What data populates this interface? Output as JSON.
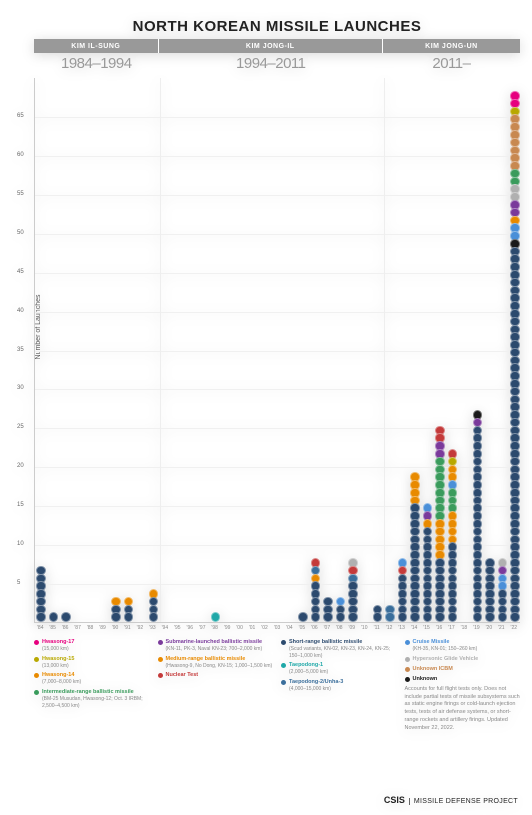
{
  "title": "NORTH KOREAN MISSILE LAUNCHES",
  "eras": [
    {
      "leader": "KIM IL-SUNG",
      "range": "1984–1994",
      "start_year": 1984,
      "end_year": 1993
    },
    {
      "leader": "KIM JONG-IL",
      "range": "1994–2011",
      "start_year": 1994,
      "end_year": 2011
    },
    {
      "leader": "KIM JONG-UN",
      "range": "2011–",
      "start_year": 2012,
      "end_year": 2022
    }
  ],
  "y_axis": {
    "label": "Number of Launches",
    "min": 0,
    "max": 70,
    "ticks": [
      5,
      10,
      15,
      20,
      25,
      30,
      35,
      40,
      45,
      50,
      55,
      60,
      65
    ]
  },
  "x_axis": {
    "start": 1984,
    "end": 2022
  },
  "dot_radius": 4.8,
  "colors": {
    "hw17": "#e6007e",
    "hw15": "#b8a800",
    "hw14": "#e88a00",
    "irbm": "#3a9b5c",
    "slbm": "#7a3a9b",
    "mrbm": "#e88a00",
    "nuclear": "#c43a3a",
    "srbm": "#2c4a6e",
    "taepo1": "#1fa8a8",
    "taepo2": "#3a6e9b",
    "cruise": "#4a8fd8",
    "hgv": "#b0b0b0",
    "icbm": "#c88850",
    "unknown": "#1a1a1a",
    "era_bg": "#999999",
    "years_text": "#999999"
  },
  "legend": [
    [
      {
        "key": "hw17",
        "name": "Hwasong-17",
        "sub": "(15,000 km)"
      },
      {
        "key": "hw15",
        "name": "Hwasong-15",
        "sub": "(13,000 km)"
      },
      {
        "key": "hw14",
        "name": "Hwasong-14",
        "sub": "(7,000–8,000 km)"
      },
      {
        "key": "irbm",
        "name": "Intermediate-range ballistic missile",
        "sub": "(BM-25 Musudan, Hwasong-12; Oct. 3 IRBM; 2,500–4,500 km)"
      }
    ],
    [
      {
        "key": "slbm",
        "name": "Submarine-launched ballistic missile",
        "sub": "(KN-11, PK-3, Naval KN-23; 700–2,000 km)"
      },
      {
        "key": "mrbm",
        "name": "Medium-range ballistic missile",
        "sub": "(Hwasong-9, No Dong, KN-15; 1,000–1,500 km)"
      },
      {
        "key": "nuclear",
        "name": "Nuclear Test",
        "sub": ""
      }
    ],
    [
      {
        "key": "srbm",
        "name": "Short-range ballistic missile",
        "sub": "(Scud variants, KN-02, KN-23, KN-24, KN-25; 150–1,000 km)"
      },
      {
        "key": "taepo1",
        "name": "Taepodong-1",
        "sub": "(2,000–5,000 km)"
      },
      {
        "key": "taepo2",
        "name": "Taepodong-2/Unha-3",
        "sub": "(4,000–15,000 km)"
      }
    ],
    [
      {
        "key": "cruise",
        "name": "Cruise Missile",
        "sub": "(KH-35, KN-01; 150–260 km)"
      },
      {
        "key": "hgv",
        "name": "Hypersonic Glide Vehicle",
        "sub": ""
      },
      {
        "key": "icbm",
        "name": "Unknown ICBM",
        "sub": ""
      },
      {
        "key": "unknown",
        "name": "Unknown",
        "sub": ""
      }
    ]
  ],
  "footnote": "Accounts for full flight tests only. Does not include partial tests of missile subsystems such as static engine firings or cold-launch ejection tests, tests of air defense systems, or short-range rockets and artillery firings. Updated November 22, 2022.",
  "credit": {
    "org": "CSIS",
    "project": "MISSILE DEFENSE PROJECT"
  },
  "data": {
    "1984": [
      "srbm",
      "srbm",
      "srbm",
      "srbm",
      "srbm",
      "srbm",
      "srbm"
    ],
    "1985": [
      "srbm"
    ],
    "1986": [
      "srbm"
    ],
    "1987": [],
    "1988": [],
    "1989": [],
    "1990": [
      "srbm",
      "srbm",
      "mrbm"
    ],
    "1991": [
      "srbm",
      "srbm",
      "mrbm"
    ],
    "1992": [],
    "1993": [
      "srbm",
      "srbm",
      "srbm",
      "mrbm"
    ],
    "1994": [],
    "1995": [],
    "1996": [],
    "1997": [],
    "1998": [
      "taepo1"
    ],
    "1999": [],
    "2000": [],
    "2001": [],
    "2002": [],
    "2003": [],
    "2004": [],
    "2005": [
      "srbm"
    ],
    "2006": [
      "srbm",
      "srbm",
      "srbm",
      "srbm",
      "srbm",
      "mrbm",
      "taepo2",
      "nuclear"
    ],
    "2007": [
      "srbm",
      "srbm",
      "srbm"
    ],
    "2008": [
      "srbm",
      "srbm",
      "cruise"
    ],
    "2009": [
      "srbm",
      "srbm",
      "srbm",
      "srbm",
      "srbm",
      "taepo2",
      "nuclear",
      "hgv"
    ],
    "2010": [],
    "2011": [
      "srbm",
      "srbm"
    ],
    "2012": [
      "taepo2",
      "taepo2"
    ],
    "2013": [
      "srbm",
      "srbm",
      "srbm",
      "srbm",
      "srbm",
      "srbm",
      "nuclear",
      "cruise"
    ],
    "2014": [
      "srbm",
      "srbm",
      "srbm",
      "srbm",
      "srbm",
      "srbm",
      "srbm",
      "srbm",
      "srbm",
      "srbm",
      "srbm",
      "srbm",
      "srbm",
      "srbm",
      "srbm",
      "mrbm",
      "mrbm",
      "mrbm",
      "mrbm"
    ],
    "2015": [
      "srbm",
      "srbm",
      "srbm",
      "srbm",
      "srbm",
      "srbm",
      "srbm",
      "srbm",
      "srbm",
      "srbm",
      "srbm",
      "srbm",
      "mrbm",
      "slbm",
      "cruise"
    ],
    "2016": [
      "srbm",
      "srbm",
      "srbm",
      "srbm",
      "srbm",
      "srbm",
      "srbm",
      "srbm",
      "mrbm",
      "mrbm",
      "mrbm",
      "mrbm",
      "mrbm",
      "irbm",
      "irbm",
      "irbm",
      "irbm",
      "irbm",
      "irbm",
      "irbm",
      "irbm",
      "slbm",
      "slbm",
      "nuclear",
      "nuclear"
    ],
    "2017": [
      "srbm",
      "srbm",
      "srbm",
      "srbm",
      "srbm",
      "srbm",
      "srbm",
      "srbm",
      "srbm",
      "srbm",
      "mrbm",
      "mrbm",
      "mrbm",
      "mrbm",
      "irbm",
      "irbm",
      "irbm",
      "cruise",
      "hw14",
      "hw14",
      "hw15",
      "nuclear"
    ],
    "2018": [],
    "2019": [
      "srbm",
      "srbm",
      "srbm",
      "srbm",
      "srbm",
      "srbm",
      "srbm",
      "srbm",
      "srbm",
      "srbm",
      "srbm",
      "srbm",
      "srbm",
      "srbm",
      "srbm",
      "srbm",
      "srbm",
      "srbm",
      "srbm",
      "srbm",
      "srbm",
      "srbm",
      "srbm",
      "srbm",
      "srbm",
      "slbm",
      "unknown"
    ],
    "2020": [
      "srbm",
      "srbm",
      "srbm",
      "srbm",
      "srbm",
      "srbm",
      "srbm",
      "srbm"
    ],
    "2021": [
      "srbm",
      "srbm",
      "srbm",
      "srbm",
      "cruise",
      "cruise",
      "slbm",
      "hgv"
    ],
    "2022": [
      "srbm",
      "srbm",
      "srbm",
      "srbm",
      "srbm",
      "srbm",
      "srbm",
      "srbm",
      "srbm",
      "srbm",
      "srbm",
      "srbm",
      "srbm",
      "srbm",
      "srbm",
      "srbm",
      "srbm",
      "srbm",
      "srbm",
      "srbm",
      "srbm",
      "srbm",
      "srbm",
      "srbm",
      "srbm",
      "srbm",
      "srbm",
      "srbm",
      "srbm",
      "srbm",
      "srbm",
      "srbm",
      "srbm",
      "srbm",
      "srbm",
      "srbm",
      "srbm",
      "srbm",
      "srbm",
      "srbm",
      "srbm",
      "srbm",
      "srbm",
      "srbm",
      "srbm",
      "srbm",
      "srbm",
      "srbm",
      "unknown",
      "cruise",
      "cruise",
      "mrbm",
      "slbm",
      "slbm",
      "hgv",
      "hgv",
      "irbm",
      "irbm",
      "icbm",
      "icbm",
      "icbm",
      "icbm",
      "icbm",
      "icbm",
      "icbm",
      "hw15",
      "hw17",
      "hw17"
    ]
  }
}
